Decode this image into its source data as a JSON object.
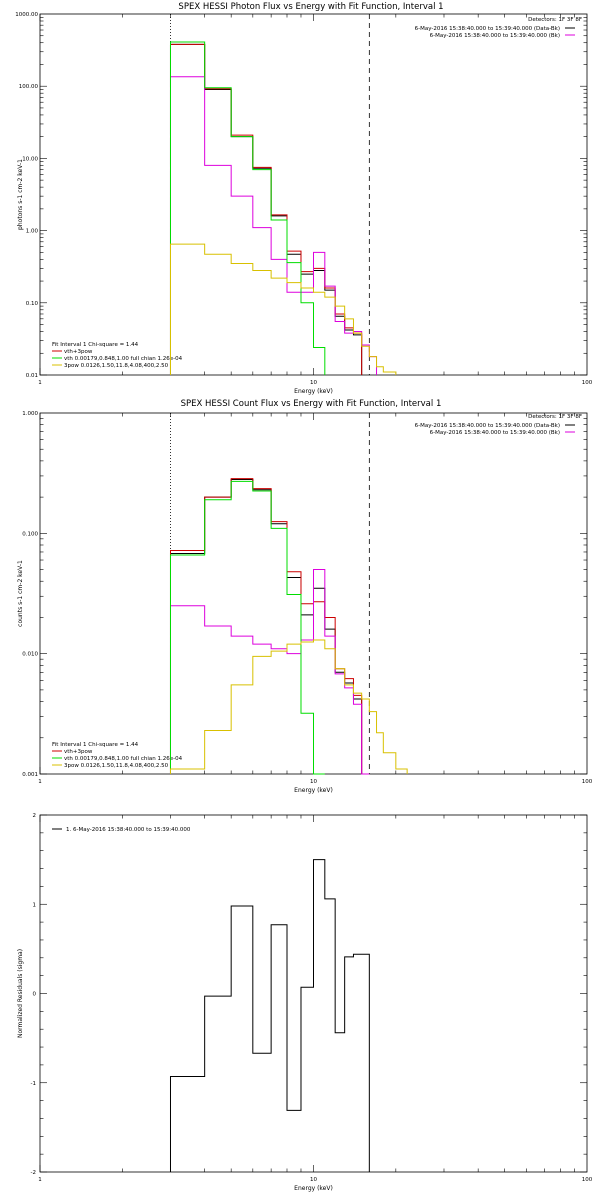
{
  "colors": {
    "black": "#000000",
    "red": "#cc0000",
    "green": "#00dd00",
    "magenta": "#dd00dd",
    "yellow": "#d8c000"
  },
  "panel1": {
    "title": "SPEX HESSI Photon Flux vs Energy with Fit Function, Interval 1",
    "detectors": "Detectors: 1F 3F 8F",
    "legend_right": [
      {
        "text": "6-May-2016 15:38:40.000 to 15:39:40.000 (Data-Bk)",
        "color": "black"
      },
      {
        "text": "6-May-2016 15:38:40.000 to 15:39:40.000 (Bk)",
        "color": "magenta"
      }
    ],
    "fit_label": "Fit Interval 1   Chi-square = 1.44",
    "legend_left": [
      {
        "text": "vth+3pow",
        "color": "red"
      },
      {
        "text": "vth 0.00179,0.848,1.00  full chian 1.26e-04",
        "color": "green"
      },
      {
        "text": "3pow 0.0126,1.50,11.8,4.08,400,2.50",
        "color": "yellow"
      }
    ]
  },
  "panel2": {
    "title": "SPEX HESSI Count Flux vs Energy with Fit Function, Interval 1",
    "detectors": "Detectors: 1F 3F 8F",
    "legend_right": [
      {
        "text": "6-May-2016 15:38:40.000 to 15:39:40.000 (Data-Bk)",
        "color": "black"
      },
      {
        "text": "6-May-2016 15:38:40.000 to 15:39:40.000 (Bk)",
        "color": "magenta"
      }
    ],
    "fit_label": "Fit Interval 1   Chi-square = 1.44",
    "legend_left": [
      {
        "text": "vth+3pow",
        "color": "red"
      },
      {
        "text": "vth 0.00179,0.848,1.00  full chian 1.26e-04",
        "color": "green"
      },
      {
        "text": "3pow 0.0126,1.50,11.8,4.08,400,2.50",
        "color": "yellow"
      }
    ]
  },
  "panel3": {
    "legend": "1. 6-May-2016 15:38:40.000 to 15:39:40.000"
  },
  "chart_data": [
    {
      "type": "line",
      "title": "SPEX HESSI Photon Flux vs Energy with Fit Function, Interval 1",
      "xlabel": "Energy (keV)",
      "ylabel": "photons s-1 cm-2 keV-1",
      "xscale": "log",
      "yscale": "log",
      "xlim": [
        1,
        100
      ],
      "ylim": [
        0.01,
        1000
      ],
      "xticks": [
        "1",
        "10",
        "100"
      ],
      "yticks": [
        "0.01",
        "0.10",
        "1.00",
        "10.00",
        "100.00",
        "1000.00"
      ],
      "vlines": [
        {
          "x": 3.0,
          "style": "dotted"
        },
        {
          "x": 16.0,
          "style": "dashed"
        }
      ],
      "edges": [
        3.0,
        4.0,
        5.0,
        6.0,
        7.0,
        8.0,
        9.0,
        10.0,
        11.0,
        12.0,
        13.0,
        14.0,
        15.0,
        16.0,
        17.0,
        18.0,
        20.0
      ],
      "series": [
        {
          "name": "Data-Bk",
          "color": "black",
          "values": [
            380,
            90,
            20,
            7.3,
            1.6,
            0.47,
            0.25,
            0.28,
            0.15,
            0.065,
            0.042,
            0.036,
            null,
            null,
            null,
            null
          ]
        },
        {
          "name": "vth+3pow",
          "color": "red",
          "values": [
            380,
            92,
            21,
            7.5,
            1.65,
            0.52,
            0.27,
            0.3,
            0.16,
            0.07,
            0.045,
            0.038,
            null,
            null,
            null,
            null
          ]
        },
        {
          "name": "Bk",
          "color": "magenta",
          "values": [
            135,
            8.0,
            3.0,
            1.1,
            0.4,
            0.14,
            0.14,
            0.5,
            0.17,
            0.055,
            0.038,
            0.04,
            0.026,
            0.018,
            null,
            null
          ]
        },
        {
          "name": "vth",
          "color": "green",
          "values": [
            410,
            95,
            20,
            7.0,
            1.4,
            0.36,
            0.1,
            0.024,
            null,
            null,
            null,
            null,
            null,
            null,
            null,
            null
          ]
        },
        {
          "name": "3pow",
          "color": "yellow",
          "values": [
            0.65,
            0.47,
            0.35,
            0.28,
            0.22,
            0.19,
            0.16,
            0.14,
            0.12,
            0.09,
            0.06,
            0.038,
            0.025,
            0.018,
            0.013,
            0.011
          ]
        }
      ]
    },
    {
      "type": "line",
      "title": "SPEX HESSI Count Flux vs Energy with Fit Function, Interval 1",
      "xlabel": "Energy (keV)",
      "ylabel": "counts s-1 cm-2 keV-1",
      "xscale": "log",
      "yscale": "log",
      "xlim": [
        1,
        100
      ],
      "ylim": [
        0.001,
        1.0
      ],
      "xticks": [
        "1",
        "10",
        "100"
      ],
      "yticks": [
        "0.001",
        "0.010",
        "0.100",
        "1.000"
      ],
      "vlines": [
        {
          "x": 3.0,
          "style": "dotted"
        },
        {
          "x": 16.0,
          "style": "dashed"
        }
      ],
      "edges": [
        3.0,
        4.0,
        5.0,
        6.0,
        7.0,
        8.0,
        9.0,
        10.0,
        11.0,
        12.0,
        13.0,
        14.0,
        15.0,
        16.0,
        17.0,
        18.0,
        20.0,
        22.0
      ],
      "series": [
        {
          "name": "Data-Bk",
          "color": "black",
          "values": [
            0.068,
            0.2,
            0.28,
            0.23,
            0.12,
            0.043,
            0.021,
            0.035,
            0.016,
            0.007,
            0.0057,
            0.0042,
            null,
            null,
            null,
            null,
            null
          ]
        },
        {
          "name": "vth+3pow",
          "color": "red",
          "values": [
            0.072,
            0.2,
            0.285,
            0.235,
            0.125,
            0.048,
            0.026,
            0.027,
            0.02,
            0.0075,
            0.0062,
            0.0045,
            null,
            null,
            null,
            null,
            null
          ]
        },
        {
          "name": "Bk",
          "color": "magenta",
          "values": [
            0.025,
            0.017,
            0.014,
            0.012,
            0.011,
            0.01,
            0.013,
            0.05,
            0.014,
            0.0068,
            0.0052,
            0.0038,
            0.001,
            null,
            null,
            null,
            null
          ]
        },
        {
          "name": "vth",
          "color": "green",
          "values": [
            0.066,
            0.19,
            0.27,
            0.225,
            0.11,
            0.031,
            0.0032,
            0.001,
            null,
            null,
            null,
            null,
            null,
            null,
            null,
            null,
            null
          ]
        },
        {
          "name": "3pow",
          "color": "yellow",
          "values": [
            0.0011,
            0.0023,
            0.0055,
            0.0095,
            0.0105,
            0.012,
            0.0125,
            0.013,
            0.011,
            0.0075,
            0.0055,
            0.0047,
            0.0042,
            0.0033,
            0.0022,
            0.0015,
            0.0011
          ]
        }
      ]
    },
    {
      "type": "line",
      "title": "",
      "xlabel": "Energy (keV)",
      "ylabel": "Normalized Residuals (sigma)",
      "xscale": "log",
      "yscale": "linear",
      "xlim": [
        1,
        100
      ],
      "ylim": [
        -2,
        2
      ],
      "xticks": [
        "1",
        "10",
        "100"
      ],
      "yticks": [
        "-2",
        "-1",
        "0",
        "1",
        "2"
      ],
      "edges": [
        3.0,
        4.0,
        5.0,
        6.0,
        7.0,
        8.0,
        9.0,
        10.0,
        11.0,
        12.0,
        13.0,
        14.0,
        15.0,
        16.0
      ],
      "series": [
        {
          "name": "1. 6-May-2016 15:38:40.000 to 15:39:40.000",
          "color": "black",
          "values": [
            -0.93,
            -0.03,
            0.98,
            -0.67,
            0.77,
            -1.31,
            0.07,
            1.5,
            1.06,
            -0.44,
            0.41,
            0.44,
            0.44
          ]
        }
      ]
    }
  ]
}
